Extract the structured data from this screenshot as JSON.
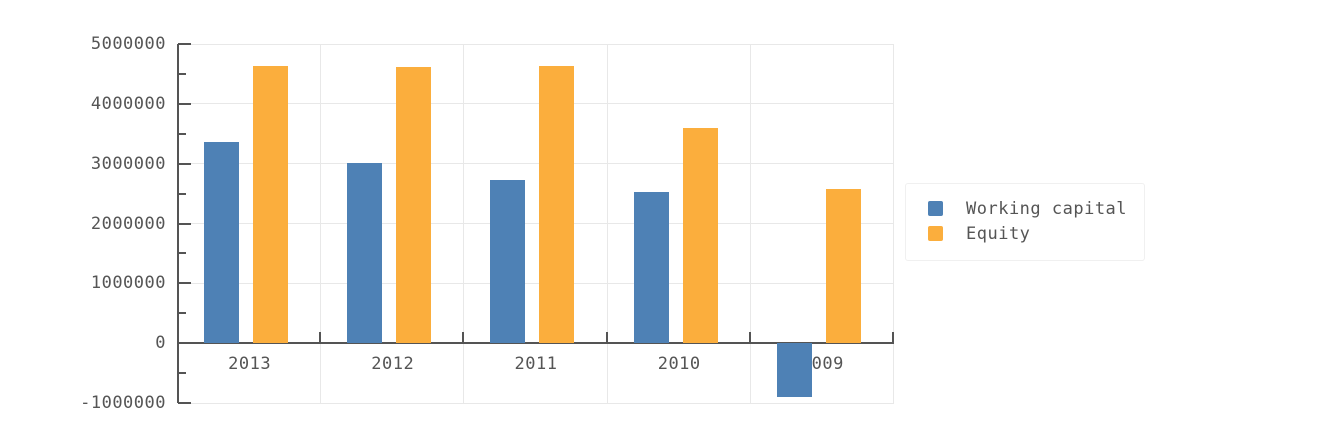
{
  "chart": {
    "background": "#ffffff",
    "text_color": "#555555",
    "axis_color": "#545454",
    "grid_color": "#e8e8e8"
  },
  "chart_data": {
    "type": "bar",
    "title": "",
    "xlabel": "",
    "ylabel": "",
    "categories": [
      "2013",
      "2012",
      "2011",
      "2010",
      "2009"
    ],
    "series": [
      {
        "name": "Working capital",
        "color": "#4e81b5",
        "values": [
          3360000,
          3010000,
          2720000,
          2520000,
          -900000
        ]
      },
      {
        "name": "Equity",
        "color": "#fbae3d",
        "values": [
          4630000,
          4620000,
          4630000,
          3590000,
          2580000
        ]
      }
    ],
    "ylim": [
      -1000000,
      5000000
    ],
    "ytick_interval": 1000000,
    "ytick_minor_interval": 500000,
    "yticklabels": [
      "5000000",
      "4000000",
      "3000000",
      "2000000",
      "1000000",
      "0",
      "-1000000"
    ],
    "grid": true,
    "legend_position": "right"
  }
}
